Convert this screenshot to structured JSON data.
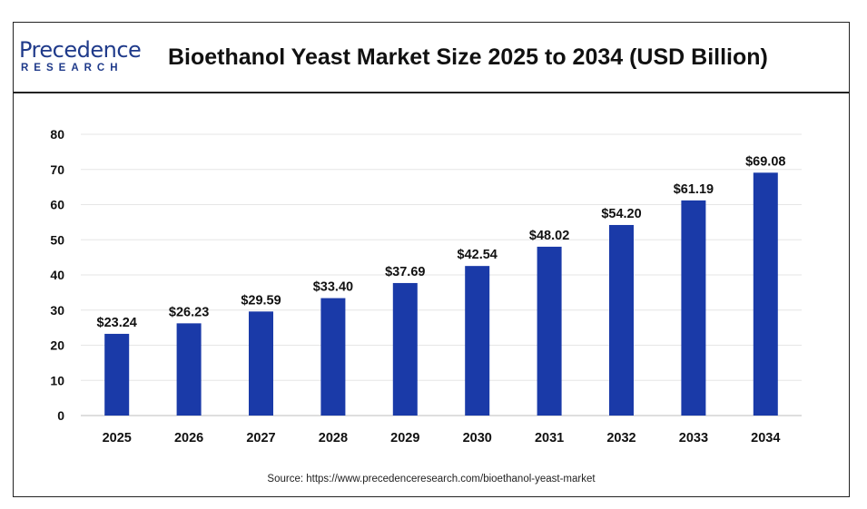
{
  "header": {
    "logo_word": "Precedence",
    "logo_sub": "RESEARCH",
    "title": "Bioethanol Yeast Market Size 2025 to 2034 (USD Billion)"
  },
  "source": "Source: https://www.precedenceresearch.com/bioethanol-yeast-market",
  "colors": {
    "bar": "#1a3aa8",
    "grid": "#e6e6e6",
    "text": "#111111"
  },
  "chart_data": {
    "type": "bar",
    "categories": [
      "2025",
      "2026",
      "2027",
      "2028",
      "2029",
      "2030",
      "2031",
      "2032",
      "2033",
      "2034"
    ],
    "values": [
      23.24,
      26.23,
      29.59,
      33.4,
      37.69,
      42.54,
      48.02,
      54.2,
      61.19,
      69.08
    ],
    "data_labels": [
      "$23.24",
      "$26.23",
      "$29.59",
      "$33.40",
      "$37.69",
      "$42.54",
      "$48.02",
      "$54.20",
      "$61.19",
      "$69.08"
    ],
    "yticks": [
      0,
      10,
      20,
      30,
      40,
      50,
      60,
      70,
      80
    ],
    "ylim": [
      0,
      80
    ],
    "grid": true,
    "legend": false
  }
}
